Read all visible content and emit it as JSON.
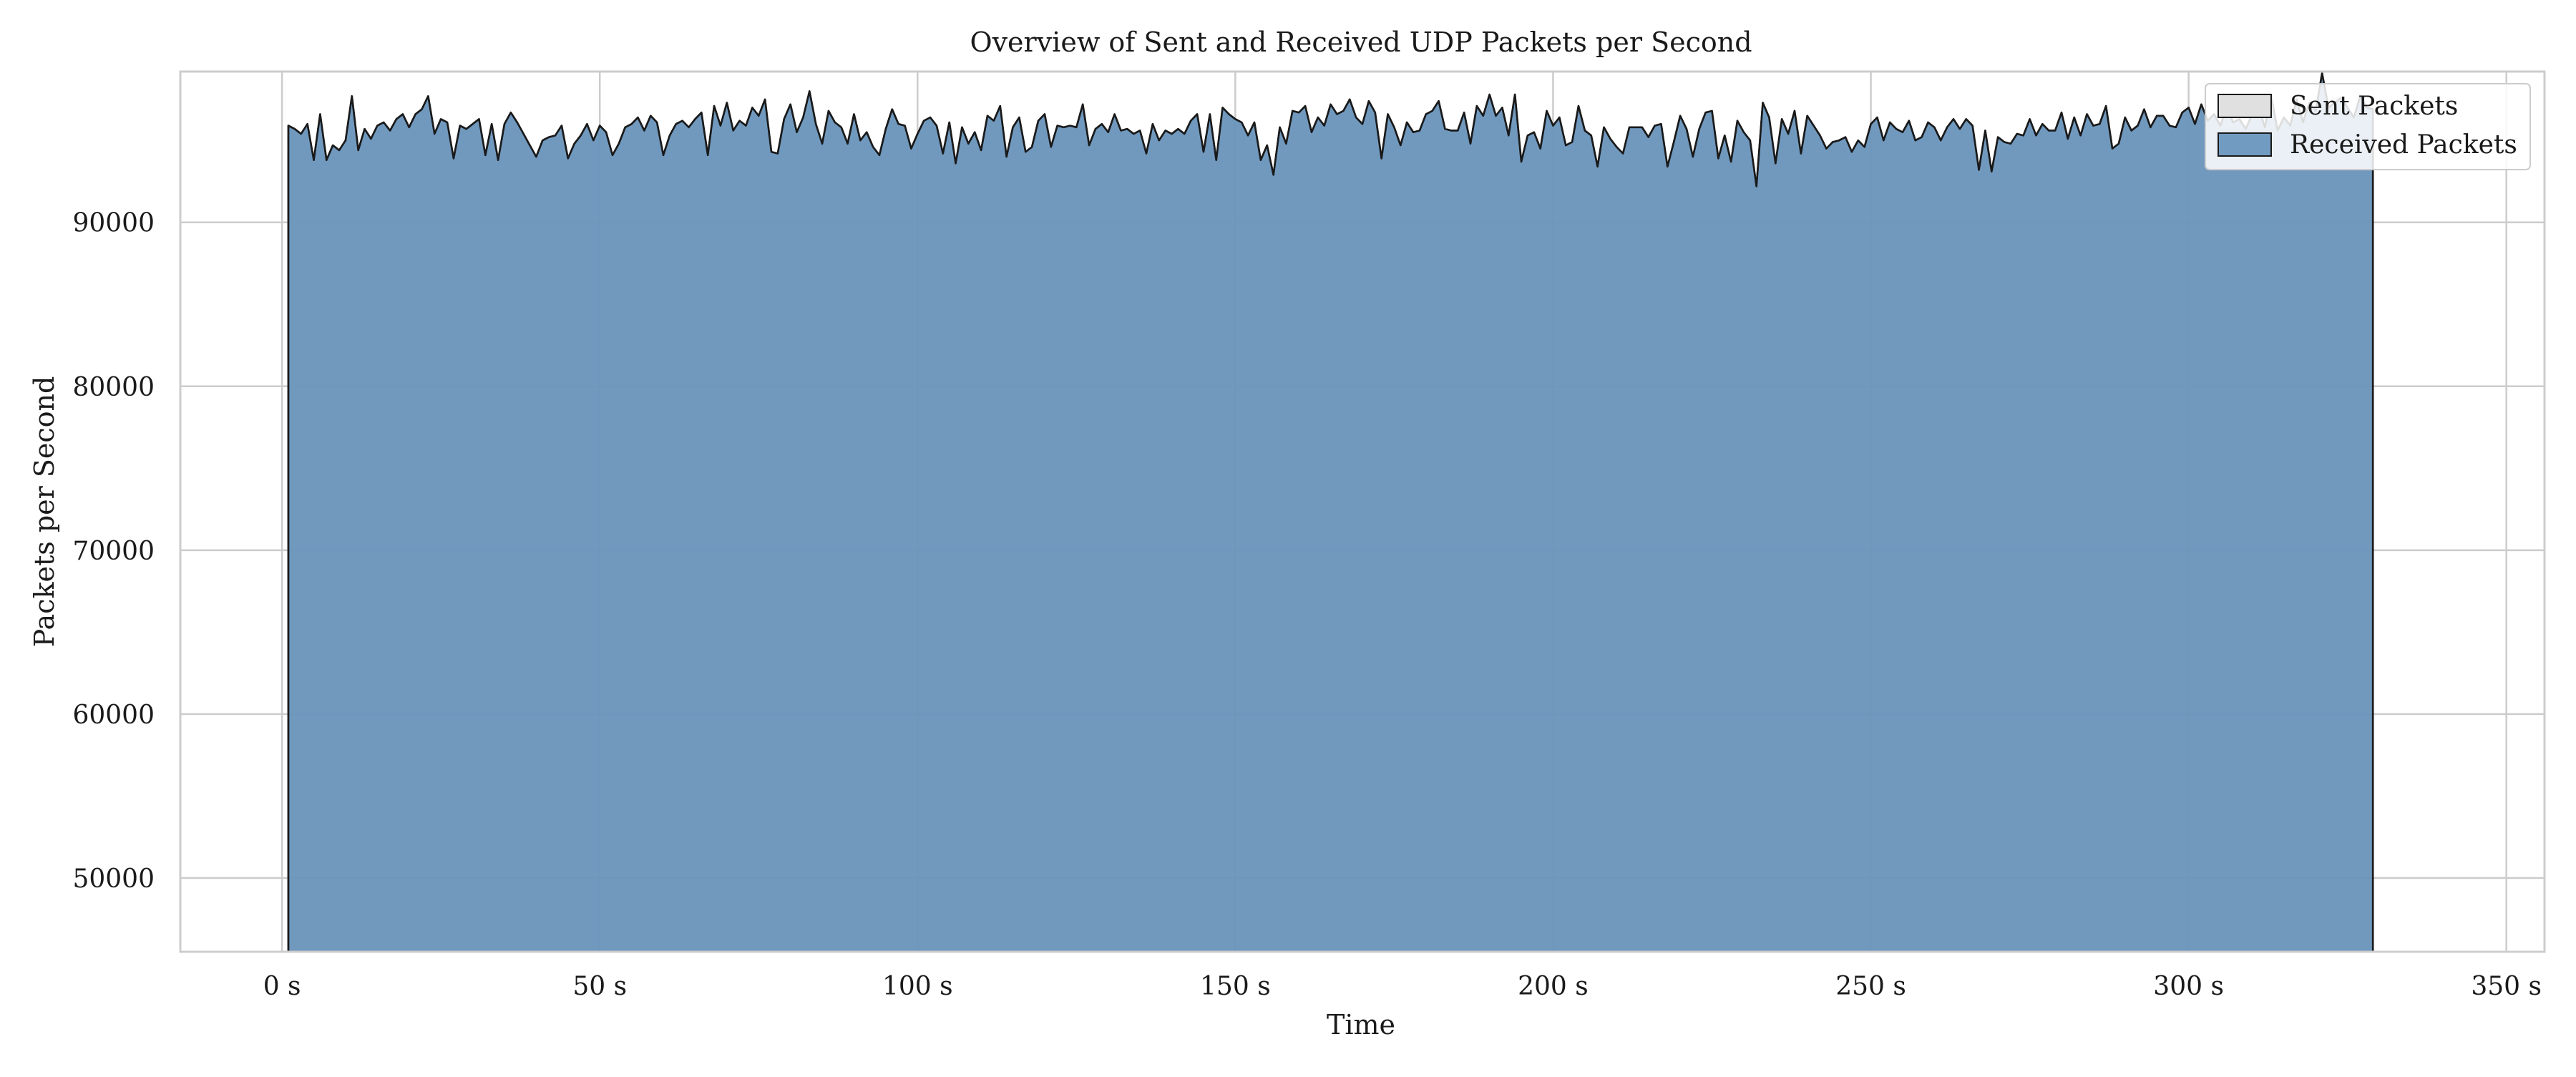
{
  "chart_data": {
    "type": "area",
    "title": "Overview of Sent and Received UDP Packets per Second",
    "xlabel": "Time",
    "ylabel": "Packets per Second",
    "xlim": [
      -16,
      356
    ],
    "ylim": [
      45500,
      99200
    ],
    "x_ticks": [
      0,
      50,
      100,
      150,
      200,
      250,
      300,
      350
    ],
    "x_tick_labels": [
      "0 s",
      "50 s",
      "100 s",
      "150 s",
      "200 s",
      "250 s",
      "300 s",
      "350 s"
    ],
    "y_ticks": [
      50000,
      60000,
      70000,
      80000,
      90000
    ],
    "y_tick_labels": [
      "50000",
      "60000",
      "70000",
      "80000",
      "90000"
    ],
    "grid": true,
    "legend_position": "top-right",
    "colors": {
      "sent": "#e0e0e0",
      "received": "#4a7fb0",
      "edge": "#1a1a1a",
      "grid": "#cccccc",
      "frame": "#cccccc"
    },
    "series": [
      {
        "name": "Sent Packets",
        "x_start": 1,
        "x_step": 1,
        "values": [
          95900,
          95700,
          95400,
          96000,
          93800,
          96600,
          93800,
          94700,
          94400,
          95000,
          97700,
          94400,
          95700,
          95100,
          95900,
          96100,
          95600,
          96300,
          96600,
          95800,
          96600,
          96900,
          97700,
          95400,
          96300,
          96100,
          93900,
          95900,
          95700,
          96000,
          96300,
          94100,
          96000,
          93800,
          96000,
          96700,
          96100,
          95400,
          94700,
          94000,
          95000,
          95200,
          95300,
          95900,
          93900,
          94800,
          95300,
          96000,
          95000,
          95900,
          95500,
          94100,
          94800,
          95800,
          96000,
          96400,
          95600,
          96500,
          96100,
          94100,
          95300,
          96000,
          96200,
          95800,
          96300,
          96700,
          94100,
          97100,
          95900,
          97300,
          95600,
          96200,
          95900,
          97000,
          96500,
          97500,
          94300,
          94200,
          96300,
          97200,
          95500,
          96400,
          98000,
          96000,
          94800,
          96800,
          96100,
          95800,
          94800,
          96600,
          95000,
          95500,
          94600,
          94100,
          95700,
          96900,
          96000,
          95900,
          94500,
          95400,
          96200,
          96400,
          95900,
          94200,
          96100,
          93600,
          95800,
          94800,
          95500,
          94400,
          96500,
          96200,
          97100,
          94000,
          95800,
          96400,
          94300,
          94600,
          96200,
          96600,
          94600,
          95900,
          95800,
          95900,
          95800,
          97200,
          94700,
          95700,
          96000,
          95500,
          96600,
          95600,
          95700,
          95400,
          95600,
          94200,
          96000,
          95000,
          95600,
          95400,
          95700,
          95400,
          96200,
          96600,
          94300,
          96600,
          93800,
          97000,
          96600,
          96300,
          96100,
          95300,
          96100,
          93800,
          94700,
          92900,
          95800,
          94800,
          96800,
          96700,
          97100,
          95500,
          96400,
          95900,
          97200,
          96600,
          96800,
          97500,
          96400,
          96000,
          97400,
          96700,
          93900,
          96600,
          95800,
          94700,
          96100,
          95500,
          95600,
          96600,
          96800,
          97400,
          95700,
          95600,
          95600,
          96700,
          94800,
          97100,
          96500,
          97800,
          96500,
          97000,
          95300,
          97800,
          93700,
          95300,
          95500,
          94500,
          96800,
          95900,
          96400,
          94700,
          94900,
          97100,
          95600,
          95300,
          93400,
          95800,
          95100,
          94600,
          94200,
          95800,
          95800,
          95800,
          95200,
          95900,
          96000,
          93400,
          94900,
          96500,
          95700,
          94000,
          95700,
          96700,
          96800,
          93900,
          95300,
          93700,
          96200,
          95500,
          95000,
          92200,
          97300,
          96400,
          93600,
          96300,
          95400,
          96800,
          94200,
          96500,
          95900,
          95300,
          94500,
          94900,
          95000,
          95200,
          94300,
          95000,
          94600,
          96000,
          96400,
          95000,
          96100,
          95700,
          95500,
          96200,
          95000,
          95200,
          96100,
          95800,
          95000,
          95800,
          96300,
          95700,
          96300,
          95900,
          93200,
          95600,
          93100,
          95200,
          94900,
          94800,
          95400,
          95300,
          96300,
          95300,
          96000,
          95600,
          95600,
          96700,
          95100,
          96400,
          95300,
          96600,
          95900,
          96000,
          97100,
          94500,
          94800,
          96400,
          95600,
          95900,
          96900,
          95800,
          96500,
          96500,
          95900,
          95800,
          96700,
          97000,
          96000,
          97200,
          96200,
          96600,
          95900,
          97000,
          96100,
          96300,
          95700,
          96600,
          97000,
          95800,
          97700,
          95600,
          96400,
          95900,
          97500,
          96100,
          97300,
          96800,
          99100,
          97000,
          97300,
          97600,
          97000,
          96400,
          97700,
          97000,
          96900
        ]
      },
      {
        "name": "Received Packets",
        "x_start": 1,
        "x_step": 1,
        "values": [
          95900,
          95700,
          95400,
          96000,
          93800,
          96600,
          93800,
          94700,
          94400,
          95000,
          97700,
          94400,
          95700,
          95100,
          95900,
          96100,
          95600,
          96300,
          96600,
          95800,
          96600,
          96900,
          97700,
          95400,
          96300,
          96100,
          93900,
          95900,
          95700,
          96000,
          96300,
          94100,
          96000,
          93800,
          96000,
          96700,
          96100,
          95400,
          94700,
          94000,
          95000,
          95200,
          95300,
          95900,
          93900,
          94800,
          95300,
          96000,
          95000,
          95900,
          95500,
          94100,
          94800,
          95800,
          96000,
          96400,
          95600,
          96500,
          96100,
          94100,
          95300,
          96000,
          96200,
          95800,
          96300,
          96700,
          94100,
          97100,
          95900,
          97300,
          95600,
          96200,
          95900,
          97000,
          96500,
          97500,
          94300,
          94200,
          96300,
          97200,
          95500,
          96400,
          98000,
          96000,
          94800,
          96800,
          96100,
          95800,
          94800,
          96600,
          95000,
          95500,
          94600,
          94100,
          95700,
          96900,
          96000,
          95900,
          94500,
          95400,
          96200,
          96400,
          95900,
          94200,
          96100,
          93600,
          95800,
          94800,
          95500,
          94400,
          96500,
          96200,
          97100,
          94000,
          95800,
          96400,
          94300,
          94600,
          96200,
          96600,
          94600,
          95900,
          95800,
          95900,
          95800,
          97200,
          94700,
          95700,
          96000,
          95500,
          96600,
          95600,
          95700,
          95400,
          95600,
          94200,
          96000,
          95000,
          95600,
          95400,
          95700,
          95400,
          96200,
          96600,
          94300,
          96600,
          93800,
          97000,
          96600,
          96300,
          96100,
          95300,
          96100,
          93800,
          94700,
          92900,
          95800,
          94800,
          96800,
          96700,
          97100,
          95500,
          96400,
          95900,
          97200,
          96600,
          96800,
          97500,
          96400,
          96000,
          97400,
          96700,
          93900,
          96600,
          95800,
          94700,
          96100,
          95500,
          95600,
          96600,
          96800,
          97400,
          95700,
          95600,
          95600,
          96700,
          94800,
          97100,
          96500,
          97800,
          96500,
          97000,
          95300,
          97800,
          93700,
          95300,
          95500,
          94500,
          96800,
          95900,
          96400,
          94700,
          94900,
          97100,
          95600,
          95300,
          93400,
          95800,
          95100,
          94600,
          94200,
          95800,
          95800,
          95800,
          95200,
          95900,
          96000,
          93400,
          94900,
          96500,
          95700,
          94000,
          95700,
          96700,
          96800,
          93900,
          95300,
          93700,
          96200,
          95500,
          95000,
          92200,
          97300,
          96400,
          93600,
          96300,
          95400,
          96800,
          94200,
          96500,
          95900,
          95300,
          94500,
          94900,
          95000,
          95200,
          94300,
          95000,
          94600,
          96000,
          96400,
          95000,
          96100,
          95700,
          95500,
          96200,
          95000,
          95200,
          96100,
          95800,
          95000,
          95800,
          96300,
          95700,
          96300,
          95900,
          93200,
          95600,
          93100,
          95200,
          94900,
          94800,
          95400,
          95300,
          96300,
          95300,
          96000,
          95600,
          95600,
          96700,
          95100,
          96400,
          95300,
          96600,
          95900,
          96000,
          97100,
          94500,
          94800,
          96400,
          95600,
          95900,
          96900,
          95800,
          96500,
          96500,
          95900,
          95800,
          96700,
          97000,
          96000,
          97200,
          96200,
          96600,
          95900,
          97000,
          96100,
          96300,
          95700,
          96600,
          97000,
          95800,
          97700,
          95600,
          96400,
          95900,
          97500,
          96100,
          97300,
          96800,
          99100,
          97000,
          97300,
          97600,
          97000,
          96400,
          97700,
          97000,
          96900
        ]
      }
    ]
  }
}
